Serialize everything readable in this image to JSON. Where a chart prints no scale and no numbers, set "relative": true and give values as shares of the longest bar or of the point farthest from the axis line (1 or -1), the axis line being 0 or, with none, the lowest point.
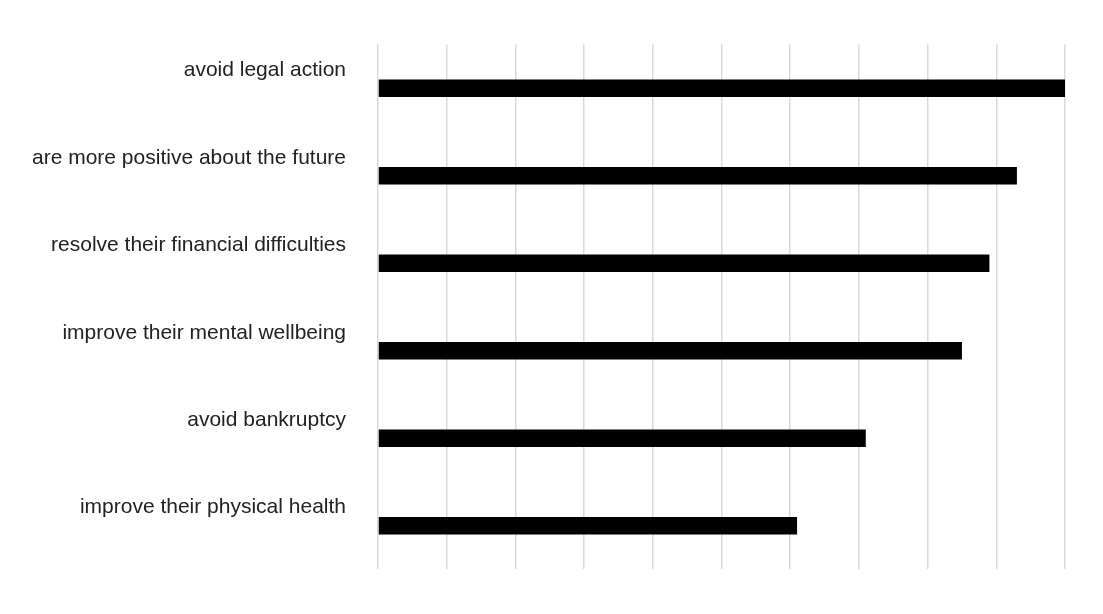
{
  "chart_data": {
    "type": "bar",
    "orientation": "horizontal",
    "relative": true,
    "grid": "x",
    "legend": false,
    "categories": [
      "avoid legal action",
      "are more positive about the future",
      "resolve their financial difficulties",
      "improve their mental wellbeing",
      "avoid bankruptcy",
      "improve their physical health"
    ],
    "values": [
      1,
      0.93,
      0.89,
      0.85,
      0.71,
      0.61
    ],
    "color": "#000000"
  }
}
